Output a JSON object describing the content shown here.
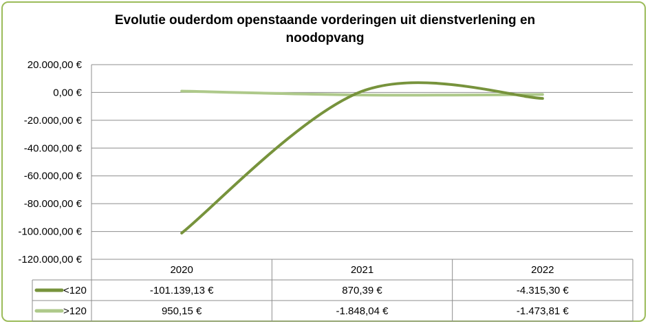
{
  "chart_data": {
    "type": "line",
    "title": "Evolutie ouderdom openstaande vorderingen uit dienstverlening en noodopvang",
    "categories": [
      "2020",
      "2021",
      "2022"
    ],
    "ylim": [
      -120000,
      20000
    ],
    "yticks": [
      20000,
      0,
      -20000,
      -40000,
      -60000,
      -80000,
      -100000,
      -120000
    ],
    "ytick_labels": [
      "20.000,00 €",
      "0,00 €",
      "-20.000,00 €",
      "-40.000,00 €",
      "-60.000,00 €",
      "-80.000,00 €",
      "-100.000,00 €",
      "-120.000,00 €"
    ],
    "grid": true,
    "legend_placement": "data-table",
    "smooth": true,
    "series": [
      {
        "name": "<120",
        "values": [
          -101139.13,
          870.39,
          -4315.3
        ],
        "labels": [
          "-101.139,13 €",
          "870,39 €",
          "-4.315,30 €"
        ],
        "color": "#77933c"
      },
      {
        "name": ">120",
        "values": [
          950.15,
          -1848.04,
          -1473.81
        ],
        "labels": [
          "950,15 €",
          "-1.848,04 €",
          "-1.473,81 €"
        ],
        "color": "#aec98a"
      }
    ]
  }
}
